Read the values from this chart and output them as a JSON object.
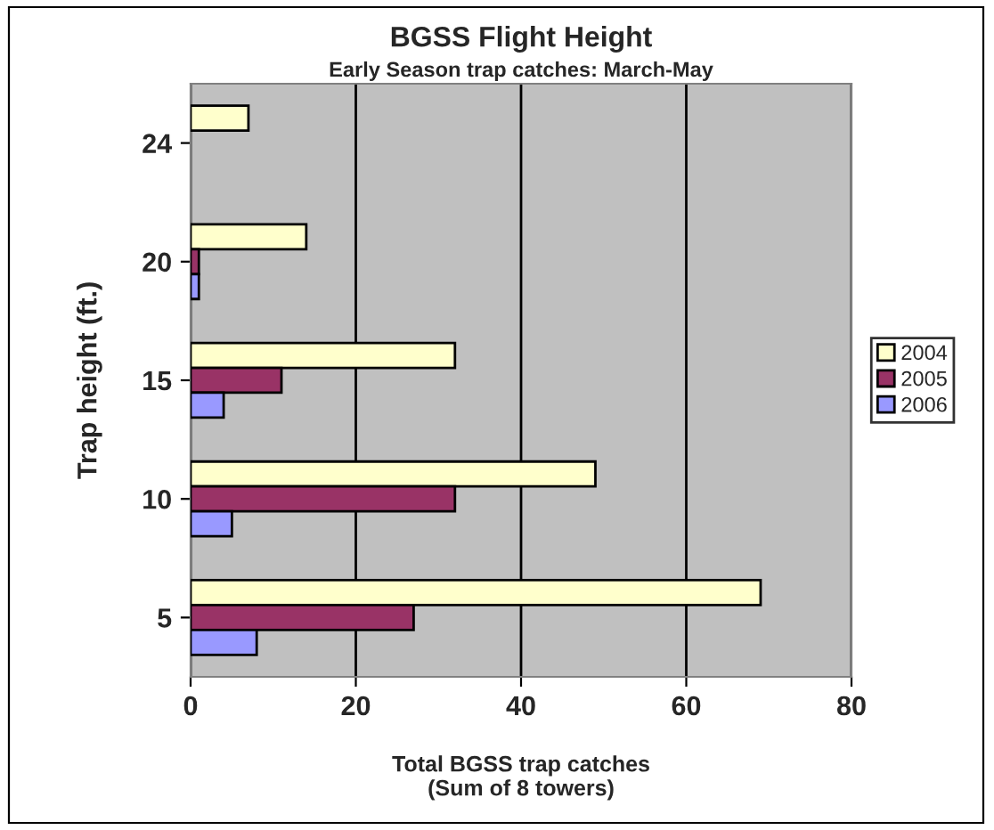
{
  "chart_data": {
    "type": "bar",
    "orientation": "horizontal",
    "title": "BGSS Flight Height",
    "subtitle": "Early Season trap catches: March-May",
    "xlabel": "Total BGSS trap catches\n(Sum of 8 towers)",
    "ylabel": "Trap height (ft.)",
    "categories": [
      "24",
      "20",
      "15",
      "10",
      "5"
    ],
    "series": [
      {
        "name": "2004",
        "color": "#ffffcc",
        "values": [
          7,
          14,
          32,
          49,
          69
        ]
      },
      {
        "name": "2005",
        "color": "#993366",
        "values": [
          null,
          1,
          11,
          32,
          27
        ]
      },
      {
        "name": "2006",
        "color": "#9999ff",
        "values": [
          null,
          1,
          4,
          5,
          8
        ]
      }
    ],
    "xlim": [
      0,
      80
    ],
    "xticks": [
      0,
      20,
      40,
      60,
      80
    ],
    "grid": "x",
    "legend": "right"
  }
}
